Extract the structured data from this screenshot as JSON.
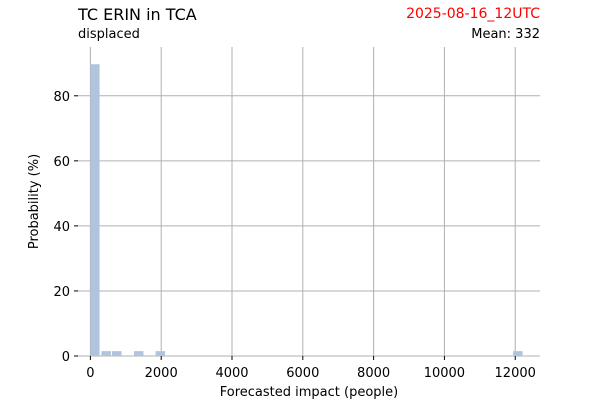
{
  "header": {
    "title": "TC ERIN in TCA",
    "subtitle": "displaced",
    "date": "2025-08-16_12UTC",
    "mean": "Mean: 332"
  },
  "colors": {
    "bar": "#b0c4de",
    "grid": "#b0b0b0",
    "date": "#ff0000"
  },
  "chart_data": {
    "type": "bar",
    "xlabel": "Forecasted impact (people)",
    "ylabel": "Probability (%)",
    "xlim": [
      -350,
      12700
    ],
    "ylim": [
      0,
      95
    ],
    "xticks": [
      0,
      2000,
      4000,
      6000,
      8000,
      10000,
      12000
    ],
    "yticks": [
      0,
      20,
      40,
      60,
      80
    ],
    "grid": true,
    "bins": [
      {
        "start": 0,
        "end": 260,
        "value": 89.7
      },
      {
        "start": 310,
        "end": 580,
        "value": 1.5
      },
      {
        "start": 610,
        "end": 880,
        "value": 1.5
      },
      {
        "start": 1230,
        "end": 1500,
        "value": 1.5
      },
      {
        "start": 1840,
        "end": 2110,
        "value": 1.5
      },
      {
        "start": 11940,
        "end": 12210,
        "value": 1.5
      }
    ]
  }
}
